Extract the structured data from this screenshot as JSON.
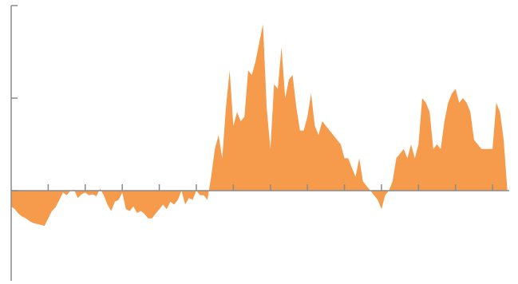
{
  "chart_data": {
    "type": "area",
    "x": [
      0,
      1,
      2,
      3,
      4,
      5,
      6,
      7,
      8,
      9,
      10,
      11,
      12,
      13,
      14,
      15,
      16,
      17,
      18,
      19,
      20,
      21,
      22,
      23,
      24,
      25,
      26,
      27,
      28,
      29,
      30,
      31,
      32,
      33,
      34,
      35,
      36,
      37,
      38,
      39,
      40,
      41,
      42,
      43,
      44,
      45,
      46,
      47,
      48,
      49,
      50,
      51,
      52,
      53,
      54,
      55,
      56,
      57,
      58,
      59,
      60,
      61,
      62,
      63,
      64,
      65,
      66,
      67,
      68,
      69,
      70,
      71,
      72,
      73,
      74,
      75,
      76,
      77,
      78,
      79,
      80,
      81,
      82,
      83,
      84,
      85,
      86,
      87,
      88,
      89,
      90,
      91,
      92,
      93,
      94,
      95,
      96,
      97,
      98,
      99,
      100,
      101,
      102,
      103,
      104,
      105,
      106,
      107,
      108,
      109,
      110,
      111,
      112,
      113,
      114,
      115,
      116,
      117,
      118,
      119,
      120,
      121,
      122,
      123,
      124,
      125,
      126,
      127,
      128,
      129,
      130,
      131,
      132,
      133,
      134
    ],
    "series": [
      {
        "color": "#f69a4b",
        "values": [
          -0.17,
          -0.2,
          -0.25,
          -0.28,
          -0.3,
          -0.33,
          -0.35,
          -0.36,
          -0.37,
          -0.38,
          -0.3,
          -0.22,
          -0.18,
          -0.1,
          -0.02,
          -0.05,
          0.0,
          0.01,
          -0.08,
          -0.04,
          -0.02,
          -0.05,
          -0.04,
          -0.06,
          0.02,
          -0.05,
          -0.15,
          -0.22,
          -0.12,
          -0.1,
          -0.02,
          -0.2,
          -0.22,
          -0.17,
          -0.24,
          -0.22,
          -0.25,
          -0.3,
          -0.3,
          -0.25,
          -0.2,
          -0.15,
          -0.2,
          -0.12,
          -0.15,
          -0.1,
          0.0,
          -0.15,
          -0.08,
          -0.1,
          0.0,
          -0.05,
          -0.05,
          -0.1,
          0.15,
          0.45,
          0.6,
          0.35,
          0.9,
          1.3,
          0.7,
          0.85,
          0.75,
          0.8,
          1.3,
          1.25,
          1.4,
          1.6,
          1.8,
          0.9,
          0.45,
          1.15,
          1.1,
          1.55,
          1.0,
          1.2,
          1.25,
          0.9,
          0.65,
          0.65,
          0.8,
          1.05,
          0.7,
          0.6,
          0.75,
          0.7,
          0.65,
          0.6,
          0.55,
          0.5,
          0.35,
          0.35,
          0.25,
          0.15,
          0.35,
          0.1,
          0.05,
          0.0,
          -0.05,
          -0.1,
          -0.2,
          -0.05,
          0.0,
          0.1,
          0.35,
          0.4,
          0.45,
          0.35,
          0.5,
          0.35,
          0.5,
          1.0,
          0.95,
          0.85,
          0.45,
          0.5,
          0.45,
          0.75,
          0.95,
          1.05,
          1.1,
          0.95,
          1.0,
          0.95,
          0.85,
          0.55,
          0.5,
          0.45,
          0.45,
          0.45,
          0.45,
          0.95,
          0.85,
          0.55,
          0.0
        ]
      }
    ],
    "xlim": [
      0,
      134.5
    ],
    "xticks": [
      10,
      20,
      30,
      40,
      50,
      60,
      70,
      80,
      90,
      100,
      110,
      120,
      130
    ],
    "ylim": [
      -1,
      2
    ],
    "yticks": [
      0,
      1,
      2
    ]
  }
}
